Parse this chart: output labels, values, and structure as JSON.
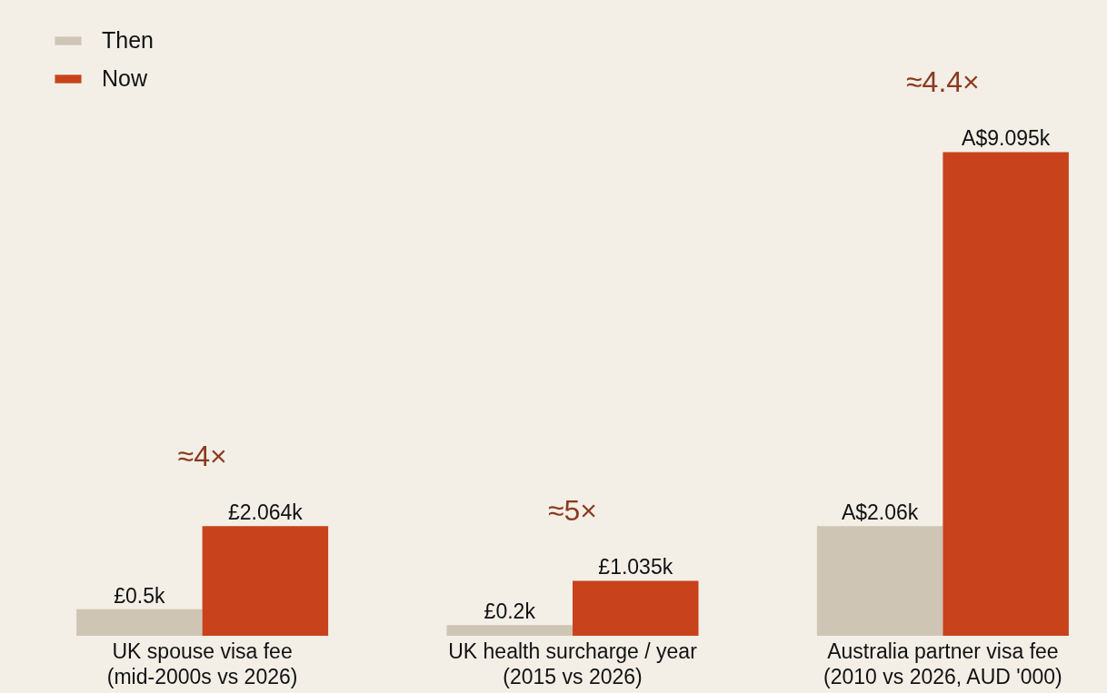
{
  "chart_data": {
    "type": "bar",
    "categories": [
      "UK spouse visa fee\n(mid-2000s vs 2026)",
      "UK health surcharge / year\n(2015 vs 2026)",
      "Australia partner visa fee\n(2010 vs 2026, AUD '000)"
    ],
    "series": [
      {
        "name": "Then",
        "color": "#cfc5b4",
        "values": [
          0.5,
          0.2,
          2.06
        ],
        "value_labels": [
          "£0.5k",
          "£0.2k",
          "A$2.06k"
        ]
      },
      {
        "name": "Now",
        "color": "#c8431b",
        "values": [
          2.064,
          1.035,
          9.095
        ],
        "value_labels": [
          "£2.064k",
          "£1.035k",
          "A$9.095k"
        ]
      }
    ],
    "annotations": [
      "≈4×",
      "≈5×",
      "≈4.4×"
    ],
    "legend": "top left",
    "grid": false,
    "tick_labels": "x"
  }
}
